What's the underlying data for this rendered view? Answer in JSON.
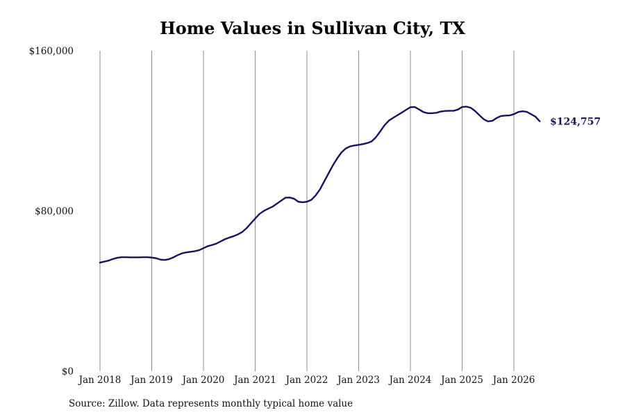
{
  "chart_data": {
    "type": "line",
    "title": "Home Values in Sullivan City, TX",
    "xlabel": "",
    "ylabel": "",
    "x_tick_labels": [
      "Jan 2018",
      "Jan 2019",
      "Jan 2020",
      "Jan 2021",
      "Jan 2022",
      "Jan 2023",
      "Jan 2024",
      "Jan 2025",
      "Jan 2026"
    ],
    "y_tick_labels": [
      "$0",
      "$80,000",
      "$160,000"
    ],
    "y_ticks": [
      0,
      80000,
      160000
    ],
    "ylim": [
      0,
      160000
    ],
    "x_range": [
      "2018-01",
      "2026-07"
    ],
    "grid": "vertical lines at x ticks",
    "line_color": "#14145e",
    "end_label": "$124,757",
    "series": [
      {
        "x": [
          "2018-01",
          "2018-02",
          "2018-03",
          "2018-04",
          "2018-05",
          "2018-06",
          "2018-07",
          "2018-08",
          "2018-09",
          "2018-10",
          "2018-11",
          "2018-12",
          "2019-01",
          "2019-02",
          "2019-03",
          "2019-04",
          "2019-05",
          "2019-06",
          "2019-07",
          "2019-08",
          "2019-09",
          "2019-10",
          "2019-11",
          "2019-12",
          "2020-01",
          "2020-02",
          "2020-03",
          "2020-04",
          "2020-05",
          "2020-06",
          "2020-07",
          "2020-08",
          "2020-09",
          "2020-10",
          "2020-11",
          "2020-12",
          "2021-01",
          "2021-02",
          "2021-03",
          "2021-04",
          "2021-05",
          "2021-06",
          "2021-07",
          "2021-08",
          "2021-09",
          "2021-10",
          "2021-11",
          "2021-12",
          "2022-01",
          "2022-02",
          "2022-03",
          "2022-04",
          "2022-05",
          "2022-06",
          "2022-07",
          "2022-08",
          "2022-09",
          "2022-10",
          "2022-11",
          "2022-12",
          "2023-01",
          "2023-02",
          "2023-03",
          "2023-04",
          "2023-05",
          "2023-06",
          "2023-07",
          "2023-08",
          "2023-09",
          "2023-10",
          "2023-11",
          "2023-12",
          "2024-01",
          "2024-02",
          "2024-03",
          "2024-04",
          "2024-05",
          "2024-06",
          "2024-07",
          "2024-08",
          "2024-09",
          "2024-10",
          "2024-11",
          "2024-12",
          "2025-01",
          "2025-02",
          "2025-03",
          "2025-04",
          "2025-05",
          "2025-06",
          "2025-07",
          "2025-08",
          "2025-09",
          "2025-10",
          "2025-11",
          "2025-12",
          "2026-01",
          "2026-02",
          "2026-03",
          "2026-04",
          "2026-05",
          "2026-06",
          "2026-07"
        ],
        "values": [
          54200,
          54700,
          55200,
          56000,
          56600,
          56900,
          56900,
          56800,
          56800,
          56800,
          56900,
          56900,
          56700,
          56400,
          55700,
          55500,
          55900,
          56800,
          57900,
          58800,
          59300,
          59600,
          59900,
          60400,
          61400,
          62400,
          63000,
          63700,
          64800,
          65900,
          66700,
          67400,
          68300,
          69500,
          71400,
          73800,
          76200,
          78500,
          80000,
          81100,
          82100,
          83600,
          85100,
          86600,
          86700,
          86100,
          84600,
          84300,
          84600,
          85500,
          87700,
          90700,
          94700,
          98700,
          102700,
          106200,
          109200,
          111200,
          112200,
          112700,
          113000,
          113400,
          113900,
          114700,
          116800,
          119700,
          122800,
          125100,
          126500,
          127800,
          129100,
          130500,
          131800,
          131900,
          130700,
          129400,
          128800,
          128800,
          129000,
          129600,
          129900,
          130000,
          130000,
          130600,
          131900,
          132100,
          131500,
          129900,
          127800,
          125800,
          124700,
          125000,
          126400,
          127400,
          127600,
          127700,
          128300,
          129400,
          129800,
          129500,
          128300,
          127100,
          124757
        ]
      }
    ]
  },
  "source_note": "Source: Zillow. Data represents monthly typical home value"
}
